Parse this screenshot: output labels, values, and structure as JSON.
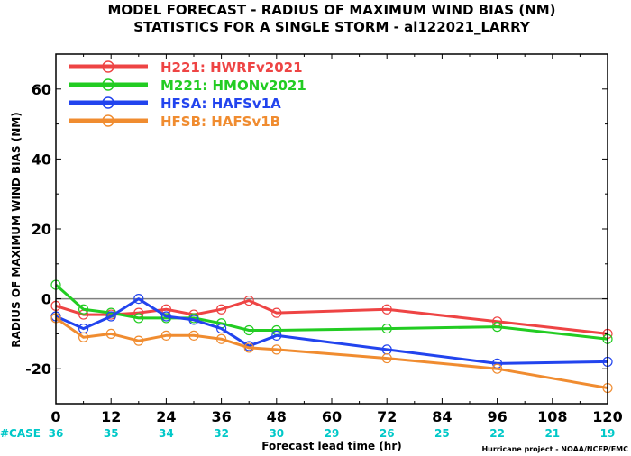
{
  "chart_data": {
    "type": "line",
    "title": "MODEL FORECAST - RADIUS OF MAXIMUM WIND BIAS (NM)",
    "subtitle": "STATISTICS FOR A SINGLE STORM - al122021_LARRY",
    "xlabel": "Forecast lead time (hr)",
    "ylabel": "RADIUS OF MAXIMUM WIND BIAS (NM)",
    "xlim": [
      0,
      120
    ],
    "ylim": [
      -30,
      70
    ],
    "x_ticks": [
      0,
      12,
      24,
      36,
      48,
      60,
      72,
      84,
      96,
      108,
      120
    ],
    "y_ticks": [
      -20,
      0,
      20,
      40,
      60
    ],
    "grid": false,
    "legend_position": "top-left",
    "reference_line": 0,
    "case_label": "#CASE",
    "cases": [
      36,
      35,
      34,
      32,
      30,
      29,
      26,
      25,
      22,
      21,
      19
    ],
    "credit": "Hurricane project - NOAA/NCEP/EMC",
    "colors": {
      "case_text": "#00c8c8",
      "axis": "#000000",
      "zero_line": "#808080"
    },
    "series": [
      {
        "code": "H221",
        "name": "HWRFv2021",
        "color": "#ee4444",
        "x": [
          0,
          6,
          12,
          18,
          24,
          30,
          36,
          42,
          48,
          72,
          96,
          120
        ],
        "y": [
          -2,
          -4.5,
          -4.5,
          -4,
          -3,
          -4.5,
          -3,
          -0.5,
          -4,
          -3,
          -6.5,
          -10
        ]
      },
      {
        "code": "M221",
        "name": "HMONv2021",
        "color": "#22cc22",
        "x": [
          0,
          6,
          12,
          18,
          24,
          30,
          36,
          42,
          48,
          72,
          96,
          120
        ],
        "y": [
          4,
          -3,
          -4,
          -5.5,
          -5.5,
          -5.5,
          -7,
          -9,
          -9,
          -8.5,
          -8,
          -11.5
        ]
      },
      {
        "code": "HFSA",
        "name": "HAFSv1A",
        "color": "#2244ee",
        "x": [
          0,
          6,
          12,
          18,
          24,
          30,
          36,
          42,
          48,
          72,
          96,
          120
        ],
        "y": [
          -5,
          -8.5,
          -5,
          0,
          -5,
          -6,
          -8.5,
          -13.5,
          -10.5,
          -14.5,
          -18.5,
          -18
        ]
      },
      {
        "code": "HFSB",
        "name": "HAFSv1B",
        "color": "#f08c30",
        "x": [
          0,
          6,
          12,
          18,
          24,
          30,
          36,
          42,
          48,
          72,
          96,
          120
        ],
        "y": [
          -5.5,
          -11,
          -10,
          -12,
          -10.5,
          -10.5,
          -11.5,
          -14,
          -14.5,
          -17,
          -20,
          -25.5
        ]
      }
    ]
  }
}
